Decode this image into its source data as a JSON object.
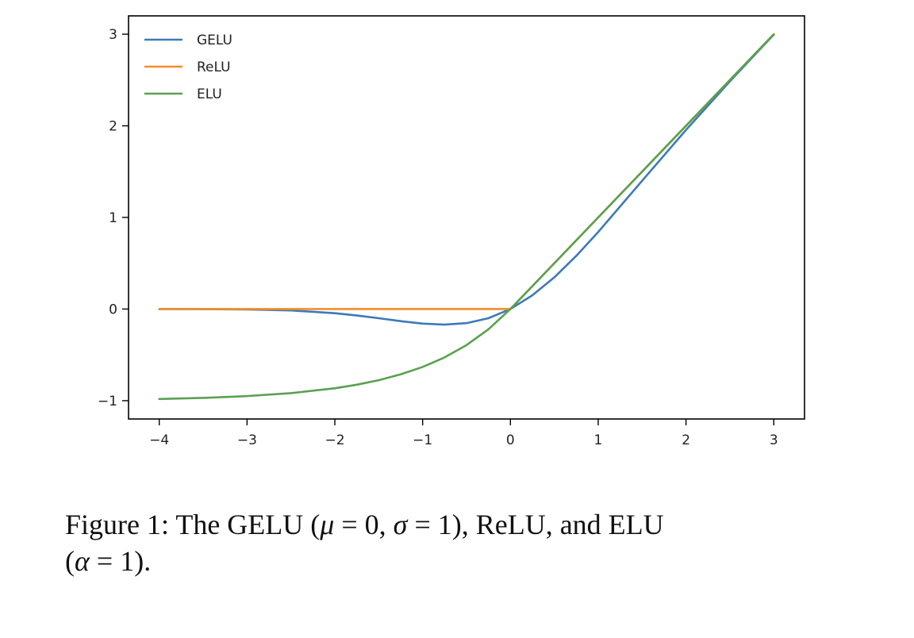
{
  "chart_data": {
    "type": "line",
    "xlim": [
      -4.35,
      3.35
    ],
    "ylim": [
      -1.2,
      3.2
    ],
    "xticks": [
      -4,
      -3,
      -2,
      -1,
      0,
      1,
      2,
      3
    ],
    "yticks": [
      -1,
      0,
      1,
      2,
      3
    ],
    "xtick_labels": [
      "−4",
      "−3",
      "−2",
      "−1",
      "0",
      "1",
      "2",
      "3"
    ],
    "ytick_labels": [
      "−1",
      "0",
      "1",
      "2",
      "3"
    ],
    "grid": false,
    "legend": {
      "placement": "top-left"
    },
    "series": [
      {
        "name": "GELU",
        "color": "#3d7ab8",
        "x": [
          -4,
          -3.5,
          -3,
          -2.5,
          -2,
          -1.75,
          -1.5,
          -1.25,
          -1,
          -0.75,
          -0.5,
          -0.25,
          0,
          0.25,
          0.5,
          0.75,
          1,
          1.5,
          2,
          2.5,
          3
        ],
        "y": [
          -0.0001,
          -0.0008,
          -0.004,
          -0.015,
          -0.045,
          -0.07,
          -0.1,
          -0.132,
          -0.159,
          -0.17,
          -0.154,
          -0.1,
          0,
          0.15,
          0.346,
          0.58,
          0.841,
          1.4,
          1.955,
          2.485,
          2.996
        ]
      },
      {
        "name": "ReLU",
        "color": "#f28e2b",
        "x": [
          -4,
          0,
          3
        ],
        "y": [
          0,
          0,
          3
        ]
      },
      {
        "name": "ELU",
        "color": "#59a14f",
        "x": [
          -4,
          -3.5,
          -3,
          -2.5,
          -2,
          -1.75,
          -1.5,
          -1.25,
          -1,
          -0.75,
          -0.5,
          -0.25,
          0,
          1,
          2,
          3
        ],
        "y": [
          -0.982,
          -0.97,
          -0.95,
          -0.918,
          -0.865,
          -0.826,
          -0.777,
          -0.713,
          -0.632,
          -0.528,
          -0.393,
          -0.221,
          0,
          1,
          2,
          3
        ]
      }
    ]
  },
  "caption": {
    "prefix": "Figure 1: The GELU (",
    "mu": "μ",
    "mid1": " = 0, ",
    "sigma": "σ",
    "mid2": " = 1), ReLU, and ELU",
    "line2_open": "(",
    "alpha": "α",
    "line2_close": " = 1)."
  }
}
